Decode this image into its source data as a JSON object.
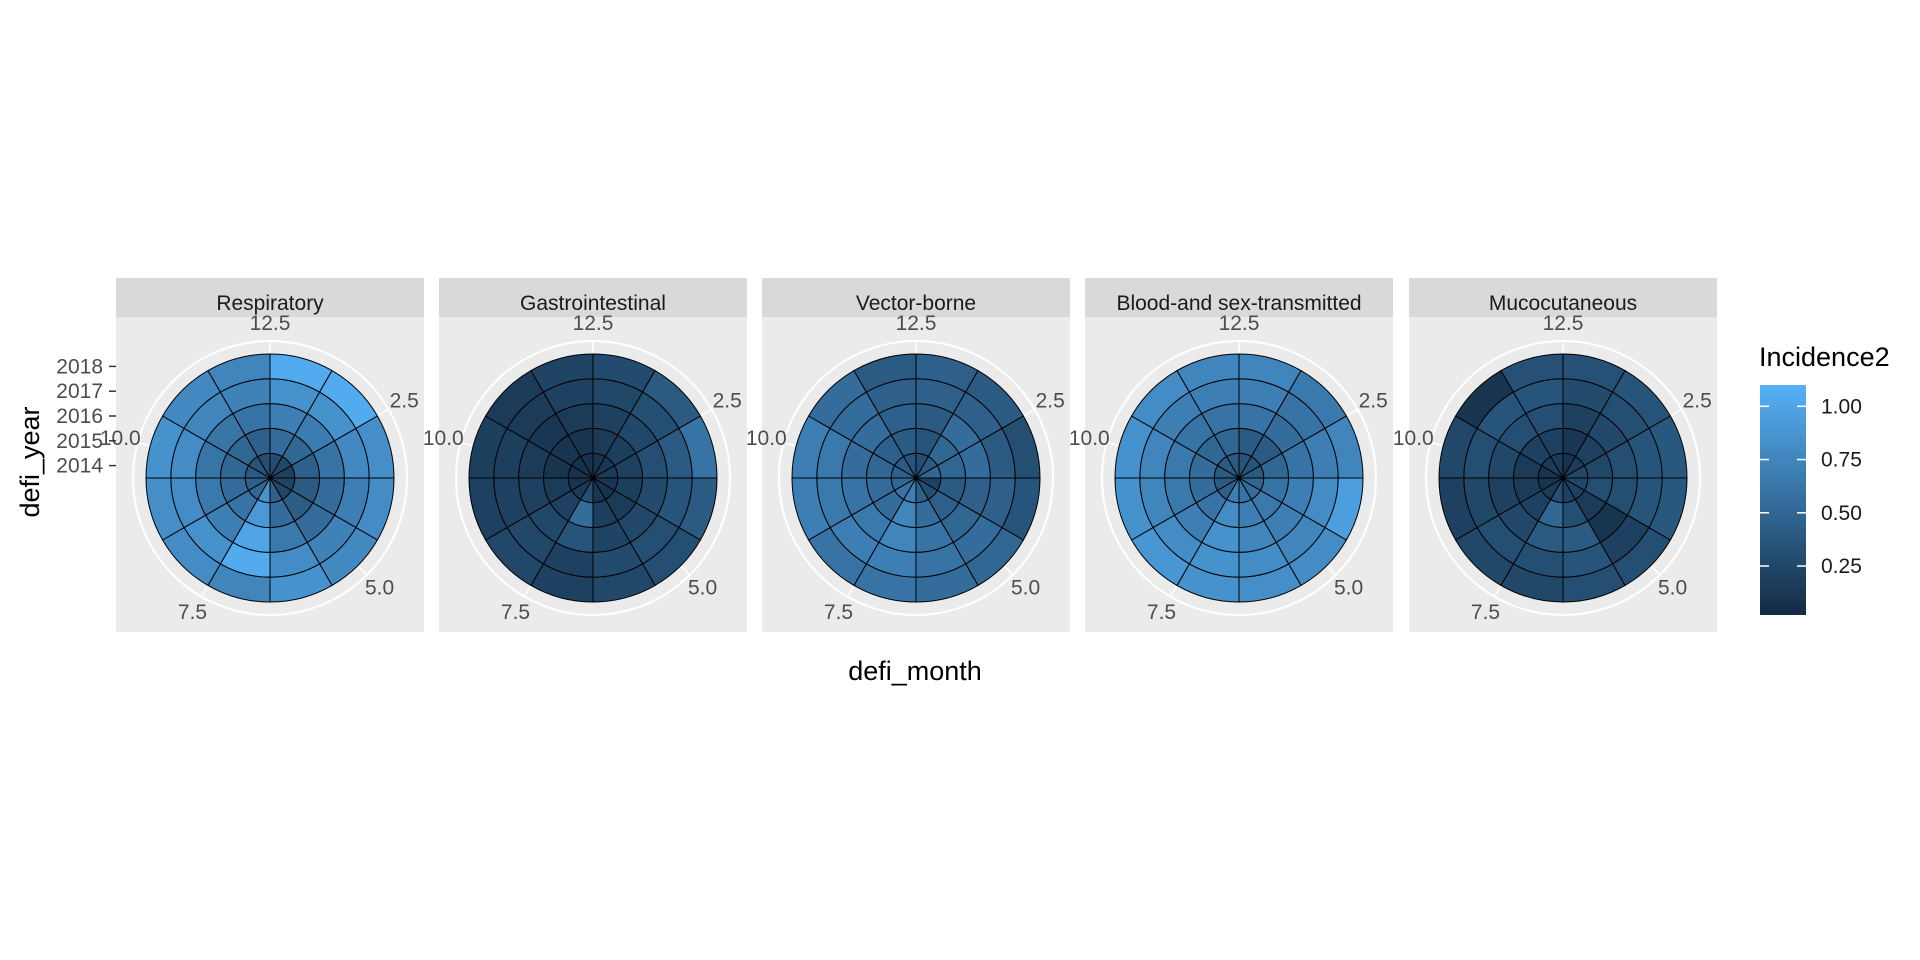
{
  "chart_data": {
    "type": "polar-heatmap",
    "xlabel": "defi_month",
    "ylabel": "defi_year",
    "x_ticks": [
      "2.5",
      "5.0",
      "7.5",
      "10.0",
      "12.5"
    ],
    "x_tick_values": [
      2.5,
      5.0,
      7.5,
      10.0,
      12.5
    ],
    "y_ticks": [
      "2014",
      "2015",
      "2016",
      "2017",
      "2018"
    ],
    "y_tick_values": [
      2014,
      2015,
      2016,
      2017,
      2018
    ],
    "months": [
      1,
      2,
      3,
      4,
      5,
      6,
      7,
      8,
      9,
      10,
      11,
      12
    ],
    "years": [
      2014,
      2015,
      2016,
      2017,
      2018
    ],
    "xlim": [
      0.5,
      12.5
    ],
    "fill_legend": {
      "title": "Incidence2",
      "breaks": [
        0.25,
        0.5,
        0.75,
        1.0
      ],
      "labels": [
        "0.25",
        "0.50",
        "0.75",
        "1.00"
      ],
      "range": [
        0.02,
        1.1
      ],
      "low_color": "#132B43",
      "high_color": "#56B1F7"
    },
    "panels": [
      {
        "name": "Respiratory",
        "values": [
          [
            0.3,
            0.55,
            0.7,
            0.85,
            1.05
          ],
          [
            0.25,
            0.5,
            0.68,
            0.85,
            1.05
          ],
          [
            0.2,
            0.45,
            0.6,
            0.78,
            0.82
          ],
          [
            0.22,
            0.4,
            0.55,
            0.7,
            0.8
          ],
          [
            0.25,
            0.42,
            0.55,
            0.72,
            0.78
          ],
          [
            0.45,
            0.55,
            0.65,
            0.8,
            0.85
          ],
          [
            0.85,
            0.9,
            1.0,
            1.05,
            0.75
          ],
          [
            0.5,
            0.6,
            0.7,
            0.85,
            0.8
          ],
          [
            0.45,
            0.55,
            0.65,
            0.8,
            0.82
          ],
          [
            0.4,
            0.5,
            0.62,
            0.8,
            0.85
          ],
          [
            0.35,
            0.5,
            0.62,
            0.75,
            0.78
          ],
          [
            0.3,
            0.45,
            0.6,
            0.72,
            0.75
          ]
        ]
      },
      {
        "name": "Gastrointestinal",
        "values": [
          [
            0.1,
            0.15,
            0.2,
            0.25,
            0.28
          ],
          [
            0.12,
            0.18,
            0.25,
            0.3,
            0.4
          ],
          [
            0.15,
            0.2,
            0.3,
            0.4,
            0.6
          ],
          [
            0.12,
            0.18,
            0.28,
            0.35,
            0.4
          ],
          [
            0.1,
            0.15,
            0.25,
            0.3,
            0.3
          ],
          [
            0.12,
            0.18,
            0.22,
            0.28,
            0.25
          ],
          [
            0.3,
            0.55,
            0.35,
            0.2,
            0.2
          ],
          [
            0.15,
            0.2,
            0.25,
            0.25,
            0.25
          ],
          [
            0.1,
            0.15,
            0.2,
            0.2,
            0.2
          ],
          [
            0.08,
            0.1,
            0.15,
            0.18,
            0.18
          ],
          [
            0.08,
            0.1,
            0.12,
            0.15,
            0.15
          ],
          [
            0.08,
            0.1,
            0.15,
            0.2,
            0.22
          ]
        ]
      },
      {
        "name": "Vector-borne",
        "values": [
          [
            0.3,
            0.35,
            0.4,
            0.45,
            0.45
          ],
          [
            0.4,
            0.5,
            0.55,
            0.45,
            0.4
          ],
          [
            0.5,
            0.5,
            0.55,
            0.4,
            0.3
          ],
          [
            0.2,
            0.4,
            0.45,
            0.45,
            0.35
          ],
          [
            0.3,
            0.45,
            0.5,
            0.55,
            0.5
          ],
          [
            0.45,
            0.55,
            0.6,
            0.6,
            0.55
          ],
          [
            0.7,
            0.75,
            0.75,
            0.7,
            0.6
          ],
          [
            0.6,
            0.55,
            0.65,
            0.7,
            0.6
          ],
          [
            0.5,
            0.55,
            0.6,
            0.65,
            0.7
          ],
          [
            0.45,
            0.5,
            0.55,
            0.65,
            0.7
          ],
          [
            0.4,
            0.45,
            0.55,
            0.55,
            0.55
          ],
          [
            0.35,
            0.4,
            0.45,
            0.45,
            0.4
          ]
        ]
      },
      {
        "name": "Blood-and sex-transmitted",
        "values": [
          [
            0.35,
            0.4,
            0.6,
            0.7,
            0.75
          ],
          [
            0.35,
            0.4,
            0.55,
            0.6,
            0.65
          ],
          [
            0.4,
            0.5,
            0.6,
            0.7,
            0.75
          ],
          [
            0.5,
            0.6,
            0.7,
            0.8,
            0.95
          ],
          [
            0.55,
            0.65,
            0.7,
            0.75,
            0.8
          ],
          [
            0.6,
            0.7,
            0.75,
            0.8,
            0.82
          ],
          [
            0.7,
            0.8,
            0.85,
            0.85,
            0.85
          ],
          [
            0.45,
            0.6,
            0.7,
            0.8,
            0.88
          ],
          [
            0.4,
            0.55,
            0.65,
            0.75,
            0.85
          ],
          [
            0.4,
            0.55,
            0.65,
            0.75,
            0.85
          ],
          [
            0.4,
            0.5,
            0.6,
            0.7,
            0.8
          ],
          [
            0.4,
            0.5,
            0.6,
            0.7,
            0.75
          ]
        ]
      },
      {
        "name": "Mucocutaneous",
        "values": [
          [
            0.08,
            0.12,
            0.2,
            0.28,
            0.32
          ],
          [
            0.15,
            0.2,
            0.25,
            0.3,
            0.35
          ],
          [
            0.25,
            0.25,
            0.3,
            0.35,
            0.38
          ],
          [
            0.25,
            0.3,
            0.3,
            0.35,
            0.38
          ],
          [
            0.2,
            0.15,
            0.1,
            0.2,
            0.3
          ],
          [
            0.2,
            0.3,
            0.4,
            0.35,
            0.3
          ],
          [
            0.3,
            0.5,
            0.4,
            0.3,
            0.25
          ],
          [
            0.15,
            0.2,
            0.25,
            0.3,
            0.25
          ],
          [
            0.1,
            0.15,
            0.2,
            0.25,
            0.2
          ],
          [
            0.1,
            0.15,
            0.25,
            0.3,
            0.25
          ],
          [
            0.15,
            0.2,
            0.3,
            0.35,
            0.1
          ],
          [
            0.15,
            0.2,
            0.3,
            0.35,
            0.32
          ]
        ]
      }
    ]
  }
}
